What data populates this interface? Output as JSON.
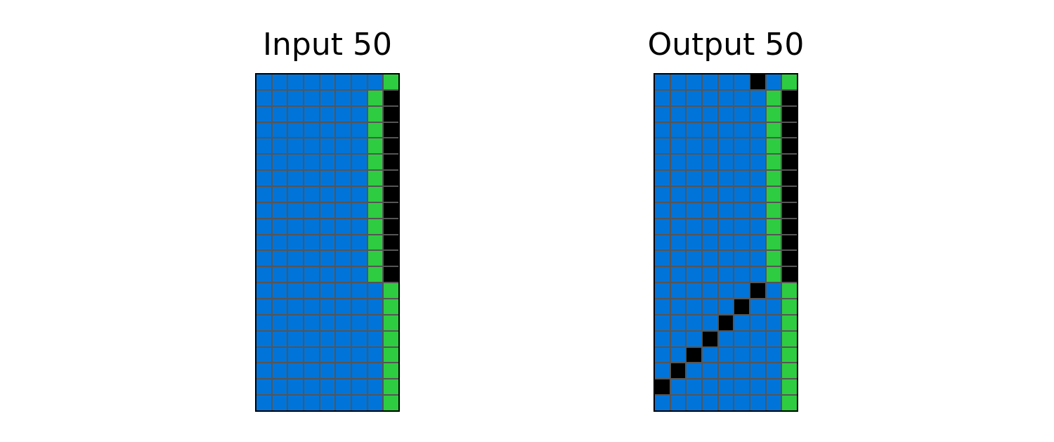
{
  "palette": {
    "0": "#000000",
    "1": "#0074D9",
    "3": "#2ECC40",
    "grid_line": "#555555",
    "border": "#000000"
  },
  "panels": [
    {
      "title": "Input 50",
      "rows": [
        [
          1,
          1,
          1,
          1,
          1,
          1,
          1,
          1,
          3
        ],
        [
          1,
          1,
          1,
          1,
          1,
          1,
          1,
          3,
          0
        ],
        [
          1,
          1,
          1,
          1,
          1,
          1,
          1,
          3,
          0
        ],
        [
          1,
          1,
          1,
          1,
          1,
          1,
          1,
          3,
          0
        ],
        [
          1,
          1,
          1,
          1,
          1,
          1,
          1,
          3,
          0
        ],
        [
          1,
          1,
          1,
          1,
          1,
          1,
          1,
          3,
          0
        ],
        [
          1,
          1,
          1,
          1,
          1,
          1,
          1,
          3,
          0
        ],
        [
          1,
          1,
          1,
          1,
          1,
          1,
          1,
          3,
          0
        ],
        [
          1,
          1,
          1,
          1,
          1,
          1,
          1,
          3,
          0
        ],
        [
          1,
          1,
          1,
          1,
          1,
          1,
          1,
          3,
          0
        ],
        [
          1,
          1,
          1,
          1,
          1,
          1,
          1,
          3,
          0
        ],
        [
          1,
          1,
          1,
          1,
          1,
          1,
          1,
          3,
          0
        ],
        [
          1,
          1,
          1,
          1,
          1,
          1,
          1,
          3,
          0
        ],
        [
          1,
          1,
          1,
          1,
          1,
          1,
          1,
          1,
          3
        ],
        [
          1,
          1,
          1,
          1,
          1,
          1,
          1,
          1,
          3
        ],
        [
          1,
          1,
          1,
          1,
          1,
          1,
          1,
          1,
          3
        ],
        [
          1,
          1,
          1,
          1,
          1,
          1,
          1,
          1,
          3
        ],
        [
          1,
          1,
          1,
          1,
          1,
          1,
          1,
          1,
          3
        ],
        [
          1,
          1,
          1,
          1,
          1,
          1,
          1,
          1,
          3
        ],
        [
          1,
          1,
          1,
          1,
          1,
          1,
          1,
          1,
          3
        ],
        [
          1,
          1,
          1,
          1,
          1,
          1,
          1,
          1,
          3
        ]
      ]
    },
    {
      "title": "Output 50",
      "rows": [
        [
          1,
          1,
          1,
          1,
          1,
          1,
          0,
          1,
          3
        ],
        [
          1,
          1,
          1,
          1,
          1,
          1,
          1,
          3,
          0
        ],
        [
          1,
          1,
          1,
          1,
          1,
          1,
          1,
          3,
          0
        ],
        [
          1,
          1,
          1,
          1,
          1,
          1,
          1,
          3,
          0
        ],
        [
          1,
          1,
          1,
          1,
          1,
          1,
          1,
          3,
          0
        ],
        [
          1,
          1,
          1,
          1,
          1,
          1,
          1,
          3,
          0
        ],
        [
          1,
          1,
          1,
          1,
          1,
          1,
          1,
          3,
          0
        ],
        [
          1,
          1,
          1,
          1,
          1,
          1,
          1,
          3,
          0
        ],
        [
          1,
          1,
          1,
          1,
          1,
          1,
          1,
          3,
          0
        ],
        [
          1,
          1,
          1,
          1,
          1,
          1,
          1,
          3,
          0
        ],
        [
          1,
          1,
          1,
          1,
          1,
          1,
          1,
          3,
          0
        ],
        [
          1,
          1,
          1,
          1,
          1,
          1,
          1,
          3,
          0
        ],
        [
          1,
          1,
          1,
          1,
          1,
          1,
          1,
          3,
          0
        ],
        [
          1,
          1,
          1,
          1,
          1,
          1,
          0,
          1,
          3
        ],
        [
          1,
          1,
          1,
          1,
          1,
          0,
          1,
          1,
          3
        ],
        [
          1,
          1,
          1,
          1,
          0,
          1,
          1,
          1,
          3
        ],
        [
          1,
          1,
          1,
          0,
          1,
          1,
          1,
          1,
          3
        ],
        [
          1,
          1,
          0,
          1,
          1,
          1,
          1,
          1,
          3
        ],
        [
          1,
          0,
          1,
          1,
          1,
          1,
          1,
          1,
          3
        ],
        [
          0,
          1,
          1,
          1,
          1,
          1,
          1,
          1,
          3
        ],
        [
          1,
          1,
          1,
          1,
          1,
          1,
          1,
          1,
          3
        ]
      ]
    }
  ]
}
